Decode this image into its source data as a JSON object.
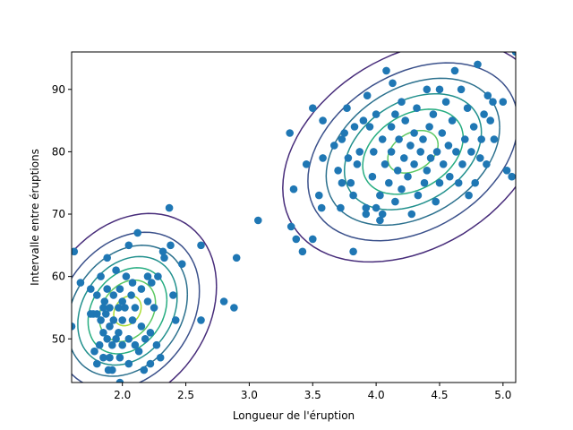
{
  "chart_data": {
    "type": "scatter",
    "title": "",
    "xlabel": "Longueur de l'éruption",
    "ylabel": "Intervalle entre éruptions",
    "xlim": [
      1.6,
      5.1
    ],
    "ylim": [
      43,
      96
    ],
    "xticks": [
      2.0,
      2.5,
      3.0,
      3.5,
      4.0,
      4.5,
      5.0
    ],
    "xtick_labels": [
      "2.0",
      "2.5",
      "3.0",
      "3.5",
      "4.0",
      "4.5",
      "5.0"
    ],
    "yticks": [
      50,
      60,
      70,
      80,
      90
    ],
    "ytick_labels": [
      "50",
      "60",
      "70",
      "80",
      "90"
    ],
    "grid": false,
    "legend": "none",
    "point_color": "#1f77b4",
    "contour_colors": [
      "#472c7a",
      "#3b518b",
      "#2c718e",
      "#21908d",
      "#27ad81",
      "#5cc863",
      "#aadc32"
    ],
    "contours": [
      {
        "center": [
          2.04,
          54.5
        ],
        "sx": 0.27,
        "sy": 6.0,
        "rho": 0.25,
        "levels": [
          1,
          2,
          3,
          4,
          5,
          6,
          7
        ],
        "radii": [
          2.6,
          2.1,
          1.75,
          1.45,
          1.15,
          0.82,
          0.4
        ]
      },
      {
        "center": [
          4.29,
          80.0
        ],
        "sx": 0.36,
        "sy": 6.2,
        "rho": 0.33,
        "levels": [
          1,
          2,
          3,
          4,
          5,
          6
        ],
        "radii": [
          2.85,
          2.3,
          1.9,
          1.5,
          1.1,
          0.55
        ]
      }
    ],
    "points": [
      [
        1.62,
        64
      ],
      [
        1.6,
        52
      ],
      [
        1.67,
        59
      ],
      [
        1.75,
        54
      ],
      [
        1.75,
        58
      ],
      [
        1.77,
        54
      ],
      [
        1.78,
        48
      ],
      [
        1.8,
        46
      ],
      [
        1.8,
        54
      ],
      [
        1.8,
        57
      ],
      [
        1.82,
        49
      ],
      [
        1.83,
        53
      ],
      [
        1.83,
        60
      ],
      [
        1.85,
        47
      ],
      [
        1.85,
        51
      ],
      [
        1.85,
        55
      ],
      [
        1.86,
        56
      ],
      [
        1.87,
        54
      ],
      [
        1.88,
        50
      ],
      [
        1.88,
        58
      ],
      [
        1.88,
        63
      ],
      [
        1.89,
        45
      ],
      [
        1.9,
        47
      ],
      [
        1.9,
        52
      ],
      [
        1.9,
        55
      ],
      [
        1.92,
        45
      ],
      [
        1.92,
        49
      ],
      [
        1.93,
        53
      ],
      [
        1.93,
        57
      ],
      [
        1.95,
        50
      ],
      [
        1.95,
        61
      ],
      [
        1.97,
        51
      ],
      [
        1.97,
        55
      ],
      [
        1.98,
        43
      ],
      [
        1.98,
        47
      ],
      [
        1.98,
        58
      ],
      [
        2.0,
        49
      ],
      [
        2.0,
        53
      ],
      [
        2.0,
        56
      ],
      [
        2.02,
        55
      ],
      [
        2.03,
        60
      ],
      [
        2.05,
        46
      ],
      [
        2.05,
        50
      ],
      [
        2.05,
        65
      ],
      [
        2.07,
        57
      ],
      [
        2.08,
        53
      ],
      [
        2.08,
        59
      ],
      [
        2.1,
        49
      ],
      [
        2.1,
        55
      ],
      [
        2.12,
        67
      ],
      [
        2.13,
        48
      ],
      [
        2.15,
        52
      ],
      [
        2.15,
        58
      ],
      [
        2.17,
        45
      ],
      [
        2.18,
        50
      ],
      [
        2.2,
        56
      ],
      [
        2.2,
        60
      ],
      [
        2.22,
        46
      ],
      [
        2.22,
        51
      ],
      [
        2.23,
        59
      ],
      [
        2.25,
        55
      ],
      [
        2.27,
        49
      ],
      [
        2.28,
        60
      ],
      [
        2.3,
        47
      ],
      [
        2.32,
        64
      ],
      [
        2.33,
        63
      ],
      [
        2.37,
        71
      ],
      [
        2.38,
        65
      ],
      [
        2.4,
        57
      ],
      [
        2.42,
        53
      ],
      [
        2.47,
        62
      ],
      [
        2.62,
        65
      ],
      [
        2.62,
        53
      ],
      [
        2.8,
        56
      ],
      [
        2.88,
        55
      ],
      [
        2.9,
        63
      ],
      [
        3.07,
        69
      ],
      [
        3.32,
        83
      ],
      [
        3.33,
        68
      ],
      [
        3.35,
        74
      ],
      [
        3.37,
        66
      ],
      [
        3.42,
        64
      ],
      [
        3.45,
        78
      ],
      [
        3.5,
        87
      ],
      [
        3.5,
        66
      ],
      [
        3.55,
        73
      ],
      [
        3.57,
        71
      ],
      [
        3.58,
        85
      ],
      [
        3.58,
        79
      ],
      [
        3.67,
        81
      ],
      [
        3.7,
        77
      ],
      [
        3.72,
        71
      ],
      [
        3.73,
        75
      ],
      [
        3.73,
        82
      ],
      [
        3.75,
        83
      ],
      [
        3.77,
        87
      ],
      [
        3.78,
        79
      ],
      [
        3.8,
        75
      ],
      [
        3.82,
        73
      ],
      [
        3.82,
        64
      ],
      [
        3.83,
        84
      ],
      [
        3.85,
        78
      ],
      [
        3.87,
        80
      ],
      [
        3.9,
        85
      ],
      [
        3.92,
        71
      ],
      [
        3.92,
        70
      ],
      [
        3.93,
        89
      ],
      [
        3.95,
        84
      ],
      [
        3.97,
        76
      ],
      [
        3.98,
        80
      ],
      [
        4.0,
        71
      ],
      [
        4.0,
        86
      ],
      [
        4.03,
        73
      ],
      [
        4.03,
        69
      ],
      [
        4.05,
        82
      ],
      [
        4.05,
        70
      ],
      [
        4.07,
        78
      ],
      [
        4.08,
        93
      ],
      [
        4.1,
        75
      ],
      [
        4.12,
        80
      ],
      [
        4.12,
        84
      ],
      [
        4.13,
        91
      ],
      [
        4.15,
        72
      ],
      [
        4.15,
        86
      ],
      [
        4.17,
        77
      ],
      [
        4.18,
        82
      ],
      [
        4.2,
        74
      ],
      [
        4.2,
        88
      ],
      [
        4.22,
        79
      ],
      [
        4.23,
        85
      ],
      [
        4.25,
        76
      ],
      [
        4.27,
        81
      ],
      [
        4.28,
        70
      ],
      [
        4.3,
        78
      ],
      [
        4.3,
        83
      ],
      [
        4.32,
        87
      ],
      [
        4.33,
        73
      ],
      [
        4.35,
        80
      ],
      [
        4.37,
        82
      ],
      [
        4.38,
        75
      ],
      [
        4.4,
        90
      ],
      [
        4.4,
        77
      ],
      [
        4.42,
        84
      ],
      [
        4.43,
        79
      ],
      [
        4.45,
        86
      ],
      [
        4.47,
        72
      ],
      [
        4.48,
        80
      ],
      [
        4.5,
        75
      ],
      [
        4.5,
        90
      ],
      [
        4.52,
        83
      ],
      [
        4.53,
        78
      ],
      [
        4.55,
        88
      ],
      [
        4.57,
        81
      ],
      [
        4.58,
        76
      ],
      [
        4.6,
        85
      ],
      [
        4.62,
        93
      ],
      [
        4.63,
        80
      ],
      [
        4.65,
        75
      ],
      [
        4.67,
        90
      ],
      [
        4.68,
        78
      ],
      [
        4.7,
        82
      ],
      [
        4.72,
        87
      ],
      [
        4.73,
        73
      ],
      [
        4.75,
        80
      ],
      [
        4.77,
        84
      ],
      [
        4.78,
        75
      ],
      [
        4.8,
        94
      ],
      [
        4.82,
        79
      ],
      [
        4.83,
        82
      ],
      [
        4.85,
        86
      ],
      [
        4.87,
        78
      ],
      [
        4.88,
        89
      ],
      [
        4.9,
        85
      ],
      [
        4.92,
        88
      ],
      [
        4.93,
        82
      ],
      [
        5.0,
        88
      ],
      [
        5.03,
        77
      ],
      [
        5.07,
        76
      ],
      [
        5.1,
        96
      ]
    ]
  }
}
